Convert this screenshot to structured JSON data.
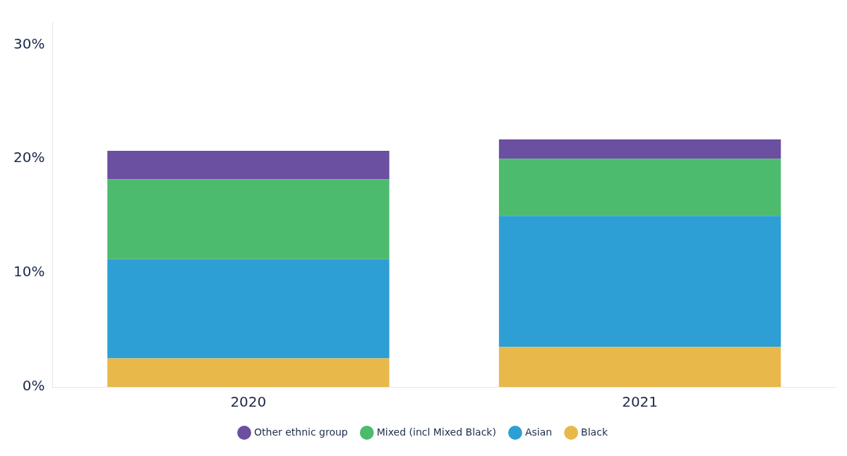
{
  "chart_data": {
    "type": "bar",
    "categories": [
      "2020",
      "2021"
    ],
    "series": [
      {
        "name": "Black",
        "color": "#E8B84B",
        "values": [
          2.5,
          3.5
        ]
      },
      {
        "name": "Asian",
        "color": "#2E9FD4",
        "values": [
          8.7,
          11.5
        ]
      },
      {
        "name": "Mixed (incl Mixed Black)",
        "color": "#4CBB6E",
        "values": [
          7.0,
          5.0
        ]
      },
      {
        "name": "Other ethnic group",
        "color": "#6B4FA0",
        "values": [
          2.5,
          1.7
        ]
      }
    ],
    "stacked": true,
    "ylim": [
      0,
      32
    ],
    "yticks": [
      {
        "value": 0,
        "label": "0%"
      },
      {
        "value": 10,
        "label": "10%"
      },
      {
        "value": 20,
        "label": "20%"
      },
      {
        "value": 30,
        "label": "30%"
      }
    ],
    "grid": false,
    "legend": "bottom"
  }
}
